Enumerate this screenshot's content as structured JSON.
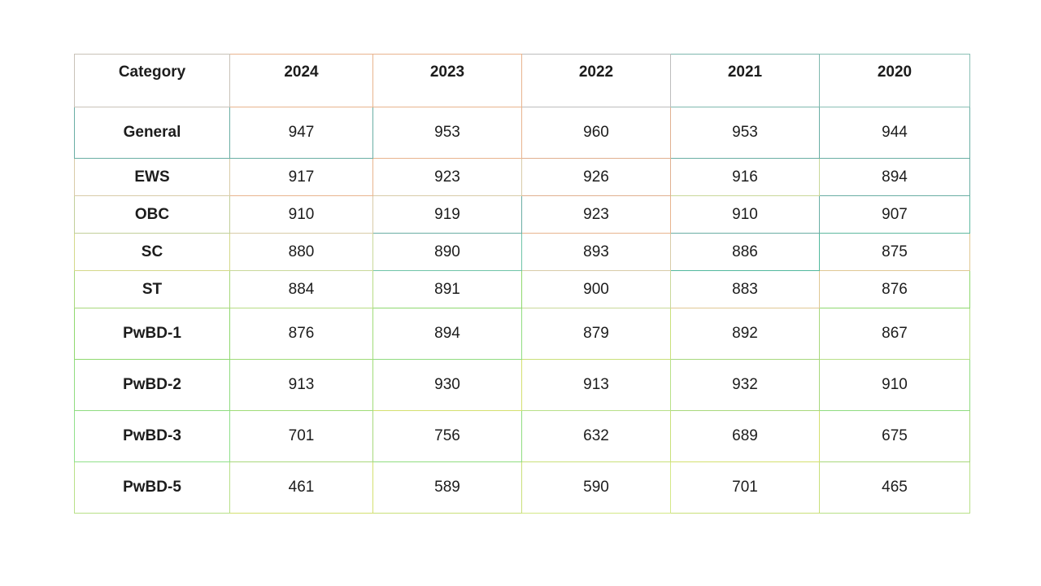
{
  "table": {
    "columns": [
      "Category",
      "2024",
      "2023",
      "2022",
      "2021",
      "2020"
    ],
    "rows": [
      {
        "category": "General",
        "values": [
          947,
          953,
          960,
          953,
          944
        ]
      },
      {
        "category": "EWS",
        "values": [
          917,
          923,
          926,
          916,
          894
        ]
      },
      {
        "category": "OBC",
        "values": [
          910,
          919,
          923,
          910,
          907
        ]
      },
      {
        "category": "SC",
        "values": [
          880,
          890,
          893,
          886,
          875
        ]
      },
      {
        "category": "ST",
        "values": [
          884,
          891,
          900,
          883,
          876
        ]
      },
      {
        "category": "PwBD-1",
        "values": [
          876,
          894,
          879,
          892,
          867
        ]
      },
      {
        "category": "PwBD-2",
        "values": [
          913,
          930,
          913,
          932,
          910
        ]
      },
      {
        "category": "PwBD-3",
        "values": [
          701,
          756,
          632,
          689,
          675
        ]
      },
      {
        "category": "PwBD-5",
        "values": [
          461,
          589,
          590,
          701,
          465
        ]
      }
    ]
  },
  "styles": {
    "background": "#ffffff",
    "text_color": "#1c1c1c",
    "border_colors": [
      [
        "#c9c2b8",
        "#e8b48e",
        "#e8b48e",
        "#bdbdbd",
        "#7fb8ae",
        "#8abfb5"
      ],
      [
        "#6aaea4",
        "#6aaea4",
        "#e8b48e",
        "#e0b090",
        "#6aaea4",
        "#6aaea4"
      ],
      [
        "#d8cba8",
        "#e8b48e",
        "#d8cba8",
        "#e0b090",
        "#c9d89a",
        "#6aaea4"
      ],
      [
        "#c2cf9a",
        "#d8cba8",
        "#6aaea4",
        "#e8b48e",
        "#6aaea4",
        "#5fb9a0"
      ],
      [
        "#d4d88a",
        "#c9d89a",
        "#6fc4a8",
        "#d8cba8",
        "#52b99e",
        "#e0c894"
      ],
      [
        "#a8d87c",
        "#b8dc84",
        "#8fd96f",
        "#c9d89a",
        "#e0c894",
        "#8fd96f"
      ],
      [
        "#8fd96f",
        "#a0dc78",
        "#90dc80",
        "#c9e07a",
        "#a8d87c",
        "#b8e088"
      ],
      [
        "#90dc80",
        "#a0dc78",
        "#d4e070",
        "#b8e088",
        "#a8d87c",
        "#90dc80"
      ],
      [
        "#90e08a",
        "#a8d87c",
        "#90dc80",
        "#c9e07a",
        "#d4e070",
        "#a8d87c"
      ],
      [
        "#b8e088",
        "#d4e070",
        "#c9e07a",
        "#d4e888",
        "#c9e07a",
        "#b8e088"
      ]
    ]
  }
}
